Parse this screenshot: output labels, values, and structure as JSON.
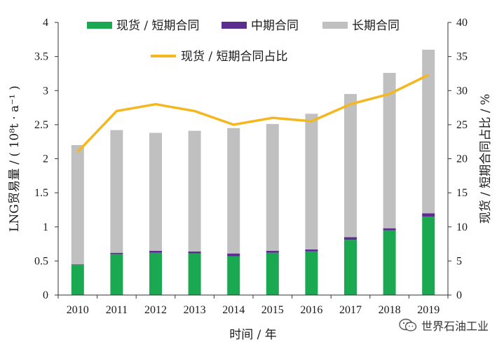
{
  "chart_data": {
    "type": "bar",
    "categories": [
      "2010",
      "2011",
      "2012",
      "2013",
      "2014",
      "2015",
      "2016",
      "2017",
      "2018",
      "2019"
    ],
    "xlabel": "时间 / 年",
    "ylabel_left": "LNG贸易量 / ( 10⁸t · a⁻¹ )",
    "ylabel_right": "现货 / 短期合同占比 / %",
    "ylim_left": [
      0,
      4
    ],
    "ylim_right": [
      0,
      40
    ],
    "yticks_left": [
      "0",
      "0.5",
      "1",
      "1.5",
      "2",
      "2.5",
      "3",
      "3.5",
      "4"
    ],
    "yticks_right": [
      "0",
      "5",
      "10",
      "15",
      "20",
      "25",
      "30",
      "35",
      "40"
    ],
    "stacked": true,
    "series": [
      {
        "name": "现货 / 短期合同",
        "values": [
          0.44,
          0.6,
          0.62,
          0.61,
          0.57,
          0.62,
          0.64,
          0.81,
          0.95,
          1.15
        ],
        "color": "#1aa850",
        "axis": "left"
      },
      {
        "name": "中期合同",
        "values": [
          0.01,
          0.02,
          0.03,
          0.03,
          0.04,
          0.03,
          0.03,
          0.04,
          0.03,
          0.05
        ],
        "color": "#5a2d8f",
        "axis": "left"
      },
      {
        "name": "长期合同",
        "values": [
          1.75,
          1.8,
          1.73,
          1.77,
          1.84,
          1.86,
          1.99,
          2.1,
          2.28,
          2.4
        ],
        "color": "#c0c0c0",
        "axis": "left"
      }
    ],
    "line_series": {
      "name": "现货 / 短期合同占比",
      "values": [
        21,
        27,
        28,
        27,
        25,
        26,
        25.5,
        28,
        29.5,
        32.3
      ],
      "color": "#f5b71f",
      "axis": "right"
    },
    "grid": false,
    "legend": "top"
  },
  "watermark": {
    "text": "世界石油工业",
    "icon": "wechat-icon"
  }
}
